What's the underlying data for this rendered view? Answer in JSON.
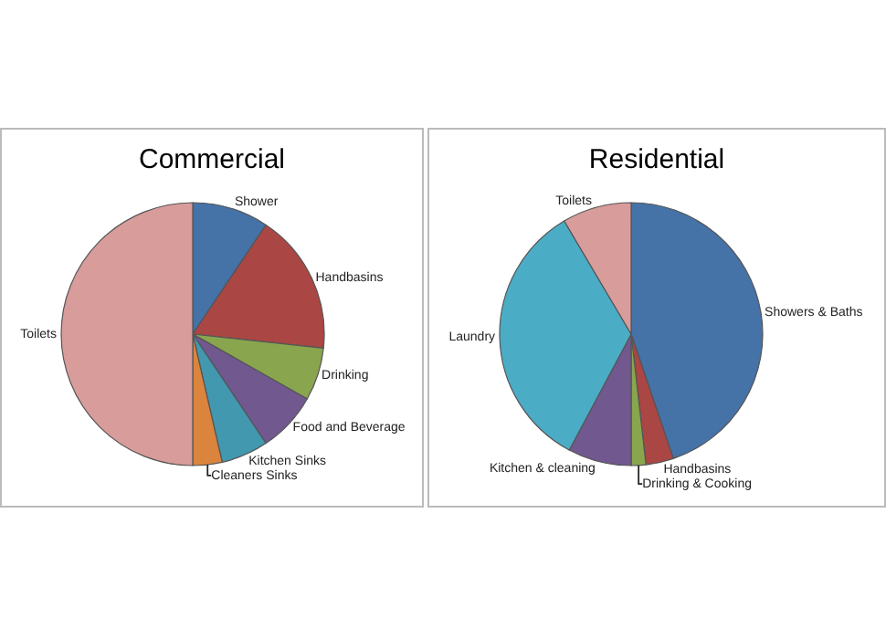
{
  "chart_data": [
    {
      "type": "pie",
      "title": "Commercial",
      "categories": [
        "Shower",
        "Handbasins",
        "Drinking",
        "Food and Beverage",
        "Kitchen Sinks",
        "Cleaners Sinks",
        "Toilets"
      ],
      "values": [
        9.4,
        17.3,
        6.5,
        7.4,
        5.8,
        3.6,
        50
      ],
      "colors": [
        "#4572a7",
        "#aa4643",
        "#89a54e",
        "#71588f",
        "#4198af",
        "#db843d",
        "#d89c9a"
      ]
    },
    {
      "type": "pie",
      "title": "Residential",
      "categories": [
        "Showers & Baths",
        "Handbasins",
        "Drinking & Cooking",
        "Kitchen & cleaning",
        "Laundry",
        "Toilets"
      ],
      "values": [
        44.8,
        3.4,
        1.8,
        7.8,
        33.7,
        8.5
      ],
      "colors": [
        "#4572a7",
        "#aa4643",
        "#89a54e",
        "#71588f",
        "#4bacc6",
        "#d89c9a"
      ]
    }
  ]
}
